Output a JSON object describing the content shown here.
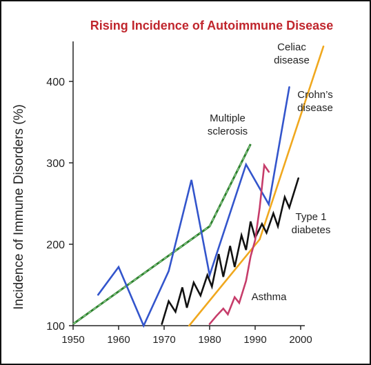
{
  "chart_data": {
    "type": "line",
    "title": "Rising Incidence of Autoimmune Disease",
    "xlabel": "",
    "ylabel": "Incidence of Immune Disorders (%)",
    "xlim": [
      1950,
      2000
    ],
    "ylim": [
      100,
      450
    ],
    "xticks": [
      "1950",
      "1960",
      "1970",
      "1980",
      "1990",
      "2000"
    ],
    "yticks": [
      "100",
      "200",
      "300",
      "400"
    ],
    "grid": false,
    "series": [
      {
        "name": "Multiple sclerosis",
        "color": "#3a9a3a",
        "dashed": true,
        "points": [
          [
            1950,
            102
          ],
          [
            1980,
            222
          ],
          [
            1989,
            323
          ]
        ]
      },
      {
        "name": "Crohn's disease",
        "color": "#3355cc",
        "points": [
          [
            1955.5,
            138
          ],
          [
            1960,
            172
          ],
          [
            1965.5,
            100
          ],
          [
            1971,
            167
          ],
          [
            1976,
            279
          ],
          [
            1980,
            162
          ],
          [
            1988,
            298
          ],
          [
            1993,
            249
          ],
          [
            1997.5,
            393
          ]
        ]
      },
      {
        "name": "Celiac disease",
        "color": "#f0a81e",
        "points": [
          [
            1975.5,
            100
          ],
          [
            1991,
            206
          ],
          [
            2005,
            443
          ]
        ]
      },
      {
        "name": "Type 1 diabetes",
        "color": "#111111",
        "points": [
          [
            1969.5,
            102
          ],
          [
            1971,
            130
          ],
          [
            1972.5,
            117
          ],
          [
            1974,
            147
          ],
          [
            1975,
            122
          ],
          [
            1976.5,
            153
          ],
          [
            1978,
            137
          ],
          [
            1979.5,
            162
          ],
          [
            1980.5,
            148
          ],
          [
            1982,
            188
          ],
          [
            1983,
            160
          ],
          [
            1984.5,
            198
          ],
          [
            1985.5,
            172
          ],
          [
            1987,
            211
          ],
          [
            1988,
            193
          ],
          [
            1989,
            228
          ],
          [
            1990,
            208
          ],
          [
            1991.5,
            225
          ],
          [
            1992.5,
            214
          ],
          [
            1994,
            238
          ],
          [
            1995,
            222
          ],
          [
            1996.5,
            258
          ],
          [
            1997.5,
            245
          ],
          [
            1999.5,
            281
          ]
        ]
      },
      {
        "name": "Asthma",
        "color": "#c63c6a",
        "points": [
          [
            1980,
            102
          ],
          [
            1981.5,
            112
          ],
          [
            1983,
            121
          ],
          [
            1984,
            114
          ],
          [
            1985.5,
            135
          ],
          [
            1986.5,
            128
          ],
          [
            1988,
            155
          ],
          [
            1989,
            185
          ],
          [
            1990,
            205
          ],
          [
            1991,
            245
          ],
          [
            1992,
            297
          ],
          [
            1993,
            289
          ]
        ]
      }
    ],
    "labels": [
      {
        "series": "Multiple sclerosis",
        "lines": [
          "Multiple",
          "sclerosis"
        ]
      },
      {
        "series": "Celiac disease",
        "lines": [
          "Celiac",
          "disease"
        ]
      },
      {
        "series": "Crohn's disease",
        "lines": [
          "Crohn’s",
          "disease"
        ]
      },
      {
        "series": "Type 1 diabetes",
        "lines": [
          "Type 1",
          "diabetes"
        ]
      },
      {
        "series": "Asthma",
        "lines": [
          "Asthma"
        ]
      }
    ]
  }
}
